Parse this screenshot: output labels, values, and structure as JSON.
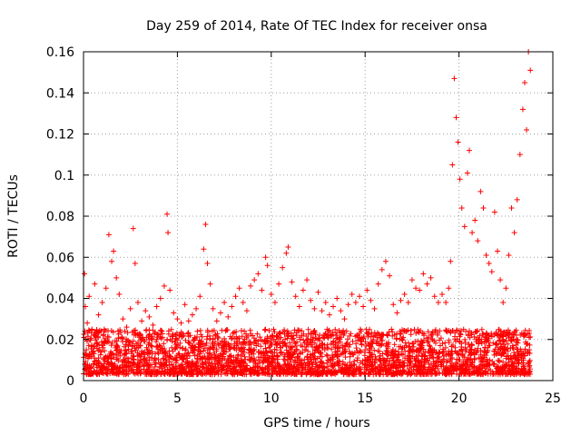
{
  "chart_data": {
    "type": "scatter",
    "title": "Day 259 of 2014, Rate Of TEC Index for receiver onsa",
    "xlabel": "GPS time / hours",
    "ylabel": "ROTI / TECUs",
    "xlim": [
      0,
      25
    ],
    "ylim": [
      0,
      0.16
    ],
    "xticks": [
      0,
      5,
      10,
      15,
      20,
      25
    ],
    "xtick_labels": [
      "0",
      "5",
      "10",
      "15",
      "20",
      "25"
    ],
    "yticks": [
      0,
      0.02,
      0.04,
      0.06,
      0.08,
      0.1,
      0.12,
      0.14,
      0.16
    ],
    "ytick_labels": [
      "0",
      "0.02",
      "0.04",
      "0.06",
      "0.08",
      "0.1",
      "0.12",
      "0.14",
      "0.16"
    ],
    "grid": true,
    "marker": "plus",
    "marker_color": "#ff0000",
    "series": [
      {
        "name": "ROTI",
        "x": [
          0.05,
          0.1,
          0.2,
          0.3,
          0.45,
          0.6,
          0.8,
          1.0,
          1.2,
          1.35,
          1.5,
          1.6,
          1.75,
          1.9,
          2.1,
          2.3,
          2.5,
          2.65,
          2.75,
          2.9,
          3.1,
          3.3,
          3.5,
          3.7,
          3.9,
          4.1,
          4.3,
          4.45,
          4.5,
          4.6,
          4.8,
          5.0,
          5.2,
          5.4,
          5.6,
          5.8,
          6.0,
          6.2,
          6.4,
          6.5,
          6.6,
          6.75,
          6.9,
          7.1,
          7.3,
          7.5,
          7.7,
          7.9,
          8.1,
          8.3,
          8.5,
          8.7,
          8.9,
          9.1,
          9.3,
          9.5,
          9.7,
          9.8,
          10.0,
          10.2,
          10.4,
          10.6,
          10.8,
          10.9,
          11.1,
          11.3,
          11.5,
          11.7,
          11.9,
          12.1,
          12.3,
          12.5,
          12.7,
          12.9,
          13.1,
          13.3,
          13.5,
          13.7,
          13.9,
          14.1,
          14.3,
          14.5,
          14.7,
          14.9,
          15.1,
          15.3,
          15.5,
          15.7,
          15.9,
          16.1,
          16.3,
          16.5,
          16.7,
          16.9,
          17.1,
          17.3,
          17.5,
          17.7,
          17.9,
          18.1,
          18.3,
          18.5,
          18.7,
          18.9,
          19.1,
          19.3,
          19.45,
          19.55,
          19.65,
          19.75,
          19.85,
          19.95,
          20.05,
          20.15,
          20.3,
          20.45,
          20.55,
          20.7,
          20.85,
          21.0,
          21.15,
          21.3,
          21.45,
          21.6,
          21.75,
          21.9,
          22.05,
          22.2,
          22.35,
          22.5,
          22.65,
          22.8,
          22.95,
          23.1,
          23.25,
          23.4,
          23.5,
          23.6,
          23.7,
          23.8,
          0.15,
          0.4,
          0.7,
          1.1,
          1.45,
          1.8,
          2.2,
          2.6,
          3.0,
          3.4,
          3.8,
          4.2,
          4.7,
          5.1,
          5.5,
          5.9,
          6.3,
          6.7,
          7.2,
          7.6,
          8.0,
          8.4,
          8.8,
          9.2,
          9.6,
          10.1,
          10.5,
          10.95,
          11.4,
          11.8,
          12.2,
          12.6,
          13.0,
          13.4,
          13.8,
          14.2,
          14.6,
          15.0,
          15.4,
          15.8,
          16.2,
          16.6,
          17.0,
          17.4,
          17.8,
          18.2,
          18.6,
          19.0,
          19.4,
          19.8,
          20.2,
          20.6,
          21.05,
          21.5,
          21.95,
          22.4,
          22.85,
          23.3,
          23.75
        ],
        "y": [
          0.052,
          0.036,
          0.028,
          0.041,
          0.025,
          0.047,
          0.032,
          0.038,
          0.045,
          0.071,
          0.058,
          0.063,
          0.05,
          0.042,
          0.03,
          0.026,
          0.035,
          0.074,
          0.057,
          0.038,
          0.029,
          0.034,
          0.031,
          0.027,
          0.036,
          0.04,
          0.046,
          0.081,
          0.072,
          0.044,
          0.033,
          0.03,
          0.028,
          0.037,
          0.029,
          0.032,
          0.035,
          0.041,
          0.064,
          0.076,
          0.057,
          0.047,
          0.035,
          0.029,
          0.033,
          0.038,
          0.031,
          0.036,
          0.041,
          0.045,
          0.038,
          0.034,
          0.046,
          0.049,
          0.052,
          0.044,
          0.06,
          0.056,
          0.042,
          0.038,
          0.047,
          0.055,
          0.062,
          0.065,
          0.048,
          0.041,
          0.036,
          0.044,
          0.049,
          0.039,
          0.035,
          0.043,
          0.034,
          0.038,
          0.032,
          0.036,
          0.04,
          0.034,
          0.03,
          0.037,
          0.042,
          0.038,
          0.041,
          0.036,
          0.044,
          0.039,
          0.035,
          0.047,
          0.054,
          0.058,
          0.051,
          0.037,
          0.033,
          0.039,
          0.042,
          0.038,
          0.049,
          0.045,
          0.044,
          0.052,
          0.047,
          0.05,
          0.041,
          0.038,
          0.042,
          0.038,
          0.045,
          0.058,
          0.105,
          0.147,
          0.128,
          0.116,
          0.098,
          0.084,
          0.075,
          0.101,
          0.112,
          0.072,
          0.078,
          0.068,
          0.092,
          0.084,
          0.061,
          0.057,
          0.053,
          0.082,
          0.063,
          0.049,
          0.038,
          0.045,
          0.061,
          0.084,
          0.072,
          0.088,
          0.11,
          0.132,
          0.145,
          0.122,
          0.16,
          0.151,
          0.015,
          0.012,
          0.018,
          0.011,
          0.014,
          0.016,
          0.013,
          0.017,
          0.012,
          0.015,
          0.011,
          0.014,
          0.016,
          0.013,
          0.012,
          0.015,
          0.018,
          0.013,
          0.011,
          0.014,
          0.016,
          0.012,
          0.015,
          0.017,
          0.013,
          0.012,
          0.016,
          0.014,
          0.011,
          0.015,
          0.013,
          0.017,
          0.012,
          0.014,
          0.016,
          0.013,
          0.011,
          0.015,
          0.018,
          0.012,
          0.014,
          0.013,
          0.016,
          0.011,
          0.015,
          0.012,
          0.014,
          0.017,
          0.013,
          0.016,
          0.012,
          0.015,
          0.011,
          0.014,
          0.018,
          0.013,
          0.016,
          0.012,
          0.015
        ]
      }
    ],
    "noise_band": {
      "x_range": [
        0,
        23.8
      ],
      "y_floor": 0.003,
      "y_typical_max": 0.025
    }
  }
}
